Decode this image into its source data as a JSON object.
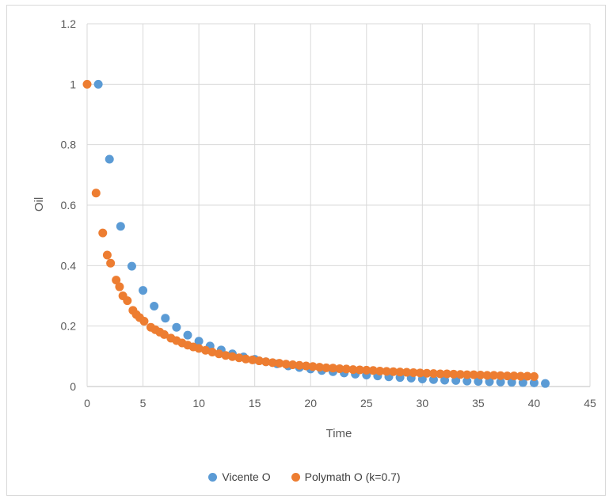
{
  "chart_data": {
    "type": "scatter",
    "title": "",
    "xlabel": "Time",
    "ylabel": "Oil",
    "xlim": [
      0,
      45
    ],
    "ylim": [
      0,
      1.2
    ],
    "x_ticks": [
      "0",
      "5",
      "10",
      "15",
      "20",
      "25",
      "30",
      "35",
      "40",
      "45"
    ],
    "y_ticks": [
      "0",
      "0.2",
      "0.4",
      "0.6",
      "0.8",
      "1",
      "1.2"
    ],
    "grid": true,
    "legend_position": "bottom",
    "series": [
      {
        "name": "Vicente O",
        "color": "#5B9BD5",
        "points": [
          [
            1,
            1.0
          ],
          [
            2,
            0.752
          ],
          [
            3,
            0.53
          ],
          [
            4,
            0.398
          ],
          [
            5,
            0.318
          ],
          [
            6,
            0.266
          ],
          [
            7,
            0.226
          ],
          [
            8,
            0.196
          ],
          [
            9,
            0.17
          ],
          [
            10,
            0.15
          ],
          [
            11,
            0.134
          ],
          [
            12,
            0.121
          ],
          [
            13,
            0.108
          ],
          [
            14,
            0.098
          ],
          [
            15,
            0.09
          ],
          [
            16,
            0.082
          ],
          [
            17,
            0.075
          ],
          [
            18,
            0.068
          ],
          [
            19,
            0.063
          ],
          [
            20,
            0.058
          ],
          [
            21,
            0.053
          ],
          [
            22,
            0.049
          ],
          [
            23,
            0.045
          ],
          [
            24,
            0.041
          ],
          [
            25,
            0.038
          ],
          [
            26,
            0.035
          ],
          [
            27,
            0.032
          ],
          [
            28,
            0.03
          ],
          [
            29,
            0.028
          ],
          [
            30,
            0.025
          ],
          [
            31,
            0.023
          ],
          [
            32,
            0.021
          ],
          [
            33,
            0.02
          ],
          [
            34,
            0.018
          ],
          [
            35,
            0.017
          ],
          [
            36,
            0.016
          ],
          [
            37,
            0.015
          ],
          [
            38,
            0.014
          ],
          [
            39,
            0.013
          ],
          [
            40,
            0.012
          ],
          [
            41,
            0.01
          ]
        ]
      },
      {
        "name": "Polymath O (k=0.7)",
        "color": "#ED7D31",
        "points": [
          [
            0,
            1.0
          ],
          [
            0.8,
            0.64
          ],
          [
            1.4,
            0.508
          ],
          [
            1.8,
            0.435
          ],
          [
            2.1,
            0.408
          ],
          [
            2.6,
            0.352
          ],
          [
            2.9,
            0.33
          ],
          [
            3.2,
            0.3
          ],
          [
            3.6,
            0.284
          ],
          [
            4.1,
            0.252
          ],
          [
            4.4,
            0.238
          ],
          [
            4.7,
            0.228
          ],
          [
            5.1,
            0.216
          ],
          [
            5.7,
            0.196
          ],
          [
            6.1,
            0.188
          ],
          [
            6.5,
            0.18
          ],
          [
            6.9,
            0.172
          ],
          [
            7.5,
            0.16
          ],
          [
            8.0,
            0.152
          ],
          [
            8.5,
            0.144
          ],
          [
            9.0,
            0.137
          ],
          [
            9.5,
            0.131
          ],
          [
            10.0,
            0.126
          ],
          [
            10.6,
            0.12
          ],
          [
            11.2,
            0.114
          ],
          [
            11.8,
            0.108
          ],
          [
            12.4,
            0.103
          ],
          [
            13.0,
            0.099
          ],
          [
            13.6,
            0.095
          ],
          [
            14.2,
            0.091
          ],
          [
            14.8,
            0.088
          ],
          [
            15.4,
            0.085
          ],
          [
            16.0,
            0.082
          ],
          [
            16.6,
            0.079
          ],
          [
            17.2,
            0.077
          ],
          [
            17.8,
            0.074
          ],
          [
            18.4,
            0.072
          ],
          [
            19.0,
            0.07
          ],
          [
            19.6,
            0.068
          ],
          [
            20.2,
            0.066
          ],
          [
            20.8,
            0.064
          ],
          [
            21.4,
            0.062
          ],
          [
            22.0,
            0.061
          ],
          [
            22.6,
            0.059
          ],
          [
            23.2,
            0.058
          ],
          [
            23.8,
            0.056
          ],
          [
            24.4,
            0.055
          ],
          [
            25.0,
            0.054
          ],
          [
            25.6,
            0.053
          ],
          [
            26.2,
            0.051
          ],
          [
            26.8,
            0.05
          ],
          [
            27.4,
            0.049
          ],
          [
            28.0,
            0.048
          ],
          [
            28.6,
            0.047
          ],
          [
            29.2,
            0.046
          ],
          [
            29.8,
            0.045
          ],
          [
            30.4,
            0.044
          ],
          [
            31.0,
            0.043
          ],
          [
            31.6,
            0.042
          ],
          [
            32.2,
            0.042
          ],
          [
            32.8,
            0.041
          ],
          [
            33.4,
            0.04
          ],
          [
            34.0,
            0.039
          ],
          [
            34.6,
            0.039
          ],
          [
            35.2,
            0.038
          ],
          [
            35.8,
            0.037
          ],
          [
            36.4,
            0.037
          ],
          [
            37.0,
            0.036
          ],
          [
            37.6,
            0.035
          ],
          [
            38.2,
            0.035
          ],
          [
            38.8,
            0.034
          ],
          [
            39.4,
            0.034
          ],
          [
            40.0,
            0.033
          ]
        ]
      }
    ]
  }
}
